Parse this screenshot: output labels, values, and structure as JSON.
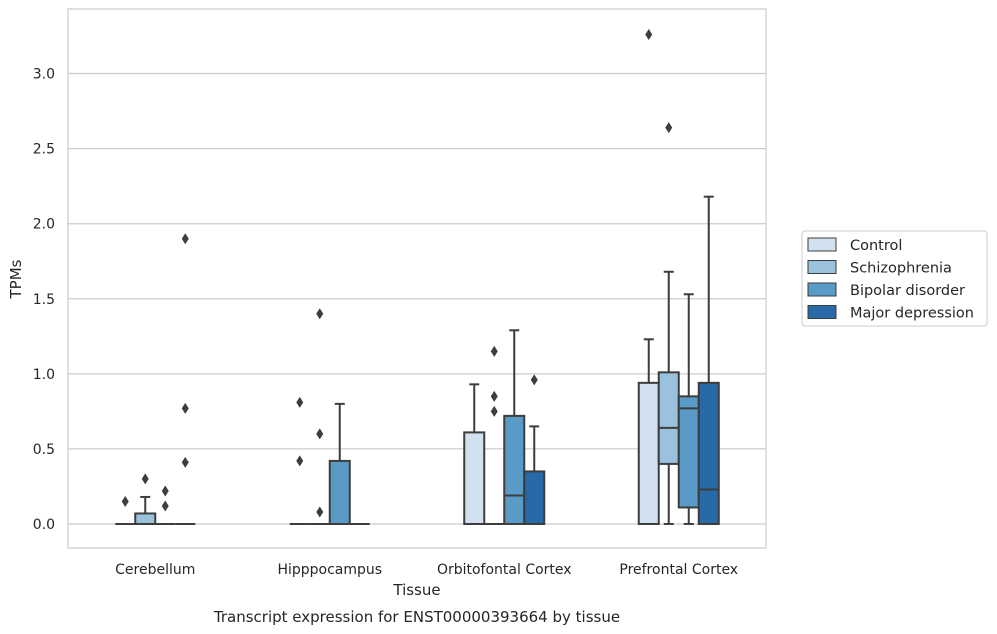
{
  "caption": "Transcript expression for ENST00000393664 by tissue",
  "chart_data": {
    "type": "box",
    "xlabel": "Tissue",
    "ylabel": "TPMs",
    "ylim": [
      -0.16,
      3.43
    ],
    "yticks": [
      "0.0",
      "0.5",
      "1.0",
      "1.5",
      "2.0",
      "2.5",
      "3.0"
    ],
    "grid": "horizontal",
    "legend_position": "right",
    "categories": [
      "Cerebellum",
      "Hipppocampus",
      "Orbitofontal Cortex",
      "Prefrontal Cortex"
    ],
    "series": [
      {
        "name": "Control",
        "color": "#d1e1f0",
        "boxes": [
          {
            "q1": 0,
            "median": 0,
            "q3": 0,
            "whisker_low": 0,
            "whisker_high": 0,
            "outliers": [
              0.15
            ]
          },
          {
            "q1": 0,
            "median": 0,
            "q3": 0,
            "whisker_low": 0,
            "whisker_high": 0,
            "outliers": [
              0.42,
              0.81
            ]
          },
          {
            "q1": 0,
            "median": 0,
            "q3": 0.61,
            "whisker_low": 0,
            "whisker_high": 0.93,
            "outliers": []
          },
          {
            "q1": 0,
            "median": 0,
            "q3": 0.94,
            "whisker_low": 0,
            "whisker_high": 1.23,
            "outliers": [
              3.26
            ]
          }
        ]
      },
      {
        "name": "Schizophrenia",
        "color": "#9ac2dc",
        "boxes": [
          {
            "q1": 0,
            "median": 0,
            "q3": 0.07,
            "whisker_low": 0,
            "whisker_high": 0.18,
            "outliers": [
              0.3
            ]
          },
          {
            "q1": 0,
            "median": 0,
            "q3": 0,
            "whisker_low": 0,
            "whisker_high": 0,
            "outliers": [
              0.08,
              0.6,
              1.4
            ]
          },
          {
            "q1": 0,
            "median": 0,
            "q3": 0,
            "whisker_low": 0,
            "whisker_high": 0,
            "outliers": [
              0.75,
              0.85,
              1.15
            ]
          },
          {
            "q1": 0.4,
            "median": 0.64,
            "q3": 1.01,
            "whisker_low": 0,
            "whisker_high": 1.68,
            "outliers": [
              2.64
            ]
          }
        ]
      },
      {
        "name": "Bipolar disorder",
        "color": "#5a9ac6",
        "boxes": [
          {
            "q1": 0,
            "median": 0,
            "q3": 0,
            "whisker_low": 0,
            "whisker_high": 0,
            "outliers": [
              0.12,
              0.22
            ]
          },
          {
            "q1": 0,
            "median": 0,
            "q3": 0.42,
            "whisker_low": 0,
            "whisker_high": 0.8,
            "outliers": []
          },
          {
            "q1": 0,
            "median": 0.19,
            "q3": 0.72,
            "whisker_low": 0,
            "whisker_high": 1.29,
            "outliers": []
          },
          {
            "q1": 0.11,
            "median": 0.77,
            "q3": 0.85,
            "whisker_low": 0,
            "whisker_high": 1.53,
            "outliers": []
          }
        ]
      },
      {
        "name": "Major depression",
        "color": "#2869a8",
        "boxes": [
          {
            "q1": 0,
            "median": 0,
            "q3": 0,
            "whisker_low": 0,
            "whisker_high": 0,
            "outliers": [
              0.41,
              0.77,
              1.9
            ]
          },
          {
            "q1": 0,
            "median": 0,
            "q3": 0,
            "whisker_low": 0,
            "whisker_high": 0,
            "outliers": []
          },
          {
            "q1": 0,
            "median": 0,
            "q3": 0.35,
            "whisker_low": 0,
            "whisker_high": 0.65,
            "outliers": [
              0.96
            ]
          },
          {
            "q1": 0,
            "median": 0.23,
            "q3": 0.94,
            "whisker_low": 0,
            "whisker_high": 2.18,
            "outliers": []
          }
        ]
      }
    ]
  }
}
